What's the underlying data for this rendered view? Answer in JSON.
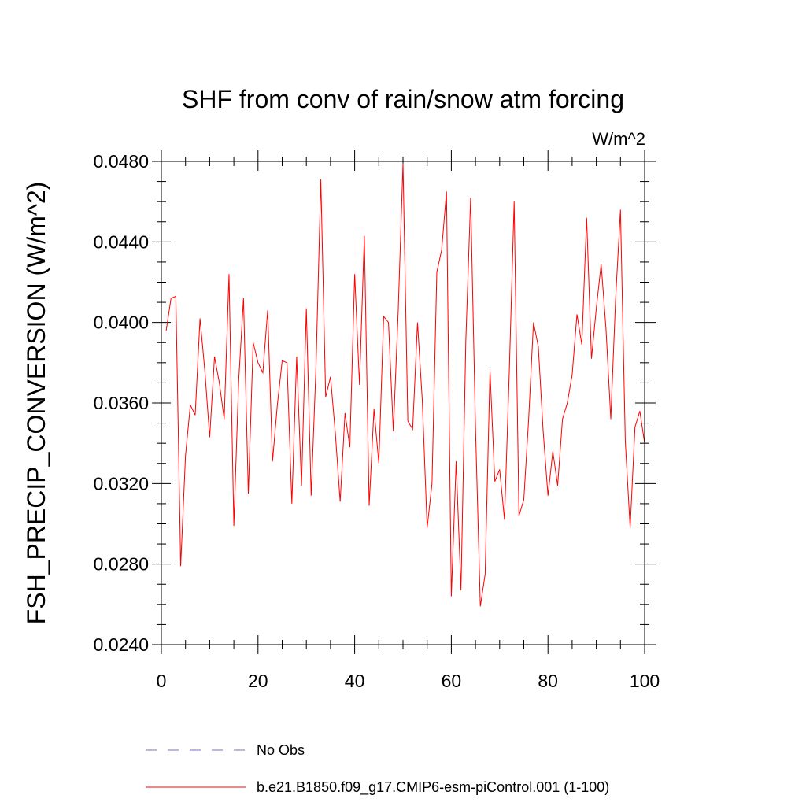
{
  "chart_data": {
    "type": "line",
    "title": "SHF from conv of rain/snow atm forcing",
    "units": "W/m^2",
    "xlabel": "",
    "ylabel": "FSH_PRECIP_CONVERSION  (W/m^2)",
    "xlim": [
      0,
      100
    ],
    "ylim": [
      0.024,
      0.048
    ],
    "xticks": [
      0,
      20,
      40,
      60,
      80,
      100
    ],
    "xtick_labels": [
      "0",
      "20",
      "40",
      "60",
      "80",
      "100"
    ],
    "yticks": [
      0.024,
      0.028,
      0.032,
      0.036,
      0.04,
      0.044,
      0.048
    ],
    "ytick_labels": [
      "0.0240",
      "0.0280",
      "0.0320",
      "0.0360",
      "0.0400",
      "0.0440",
      "0.0480"
    ],
    "grid": false,
    "series": [
      {
        "name": "b.e21.B1850.f09_g17.CMIP6-esm-piControl.001 (1-100)",
        "color": "#ff0000",
        "x": [
          1,
          2,
          3,
          4,
          5,
          6,
          7,
          8,
          9,
          10,
          11,
          12,
          13,
          14,
          15,
          16,
          17,
          18,
          19,
          20,
          21,
          22,
          23,
          24,
          25,
          26,
          27,
          28,
          29,
          30,
          31,
          32,
          33,
          34,
          35,
          36,
          37,
          38,
          39,
          40,
          41,
          42,
          43,
          44,
          45,
          46,
          47,
          48,
          49,
          50,
          51,
          52,
          53,
          54,
          55,
          56,
          57,
          58,
          59,
          60,
          61,
          62,
          63,
          64,
          65,
          66,
          67,
          68,
          69,
          70,
          71,
          72,
          73,
          74,
          75,
          76,
          77,
          78,
          79,
          80,
          81,
          82,
          83,
          84,
          85,
          86,
          87,
          88,
          89,
          90,
          91,
          92,
          93,
          94,
          95,
          96,
          97,
          98,
          99,
          100
        ],
        "values": [
          0.0396,
          0.0412,
          0.0413,
          0.0279,
          0.0334,
          0.0359,
          0.0354,
          0.0402,
          0.0376,
          0.0343,
          0.0383,
          0.037,
          0.0352,
          0.0424,
          0.0299,
          0.0371,
          0.0412,
          0.0315,
          0.039,
          0.038,
          0.0375,
          0.0406,
          0.0331,
          0.0359,
          0.0381,
          0.038,
          0.031,
          0.0383,
          0.0319,
          0.0407,
          0.0314,
          0.0378,
          0.0471,
          0.0363,
          0.0373,
          0.0345,
          0.0311,
          0.0355,
          0.0338,
          0.0424,
          0.0369,
          0.0443,
          0.0309,
          0.0357,
          0.033,
          0.0403,
          0.04,
          0.0346,
          0.0405,
          0.0479,
          0.0351,
          0.0347,
          0.04,
          0.0361,
          0.0298,
          0.032,
          0.0425,
          0.0436,
          0.0465,
          0.0264,
          0.0331,
          0.0267,
          0.0391,
          0.0462,
          0.0348,
          0.0259,
          0.0275,
          0.0376,
          0.0321,
          0.0327,
          0.0302,
          0.0376,
          0.046,
          0.0304,
          0.0312,
          0.0352,
          0.04,
          0.0388,
          0.0346,
          0.0314,
          0.0336,
          0.0319,
          0.0352,
          0.036,
          0.0374,
          0.0404,
          0.0389,
          0.0452,
          0.0382,
          0.0407,
          0.0429,
          0.0397,
          0.0352,
          0.0412,
          0.0456,
          0.0341,
          0.0298,
          0.0348,
          0.0356,
          0.034
        ]
      }
    ],
    "legend": [
      {
        "label": "No Obs",
        "style": "dashed",
        "color": "#7070c0"
      },
      {
        "label": "b.e21.B1850.f09_g17.CMIP6-esm-piControl.001 (1-100)",
        "style": "solid",
        "color": "#ff0000"
      }
    ],
    "legend_position": "bottom"
  }
}
